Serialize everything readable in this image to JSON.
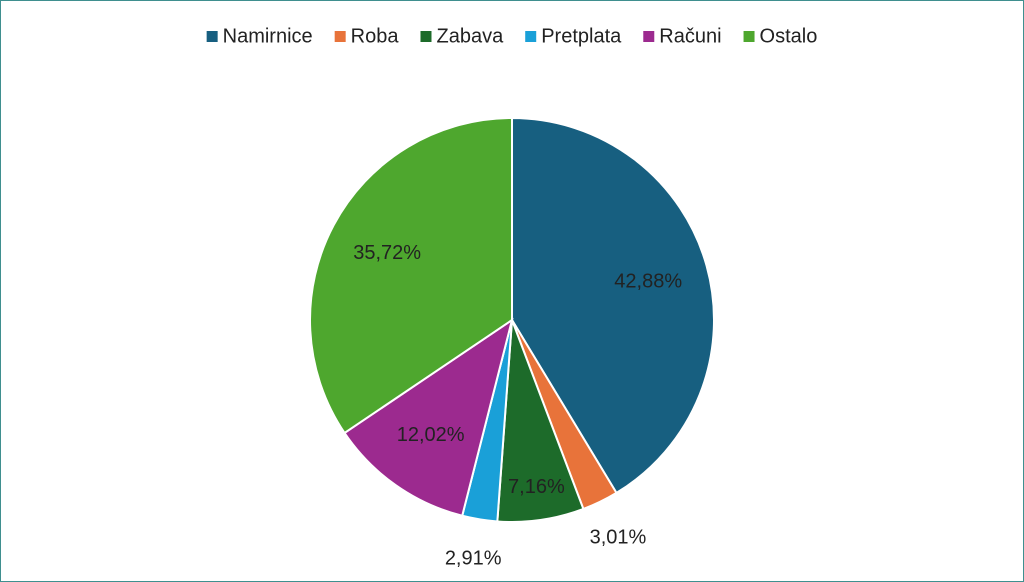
{
  "chart_data": {
    "type": "pie",
    "categories": [
      "Namirnice",
      "Roba",
      "Zabava",
      "Pretplata",
      "Računi",
      "Ostalo"
    ],
    "values": [
      42.88,
      3.01,
      7.16,
      2.91,
      12.02,
      35.72
    ],
    "value_labels": [
      "42,88%",
      "3,01%",
      "7,16%",
      "2,91%",
      "12,02%",
      "35,72%"
    ],
    "colors": [
      "#175f80",
      "#e8733a",
      "#1d6b2a",
      "#1aa0d8",
      "#9c2a8f",
      "#4ea72e"
    ],
    "legend": "top"
  }
}
